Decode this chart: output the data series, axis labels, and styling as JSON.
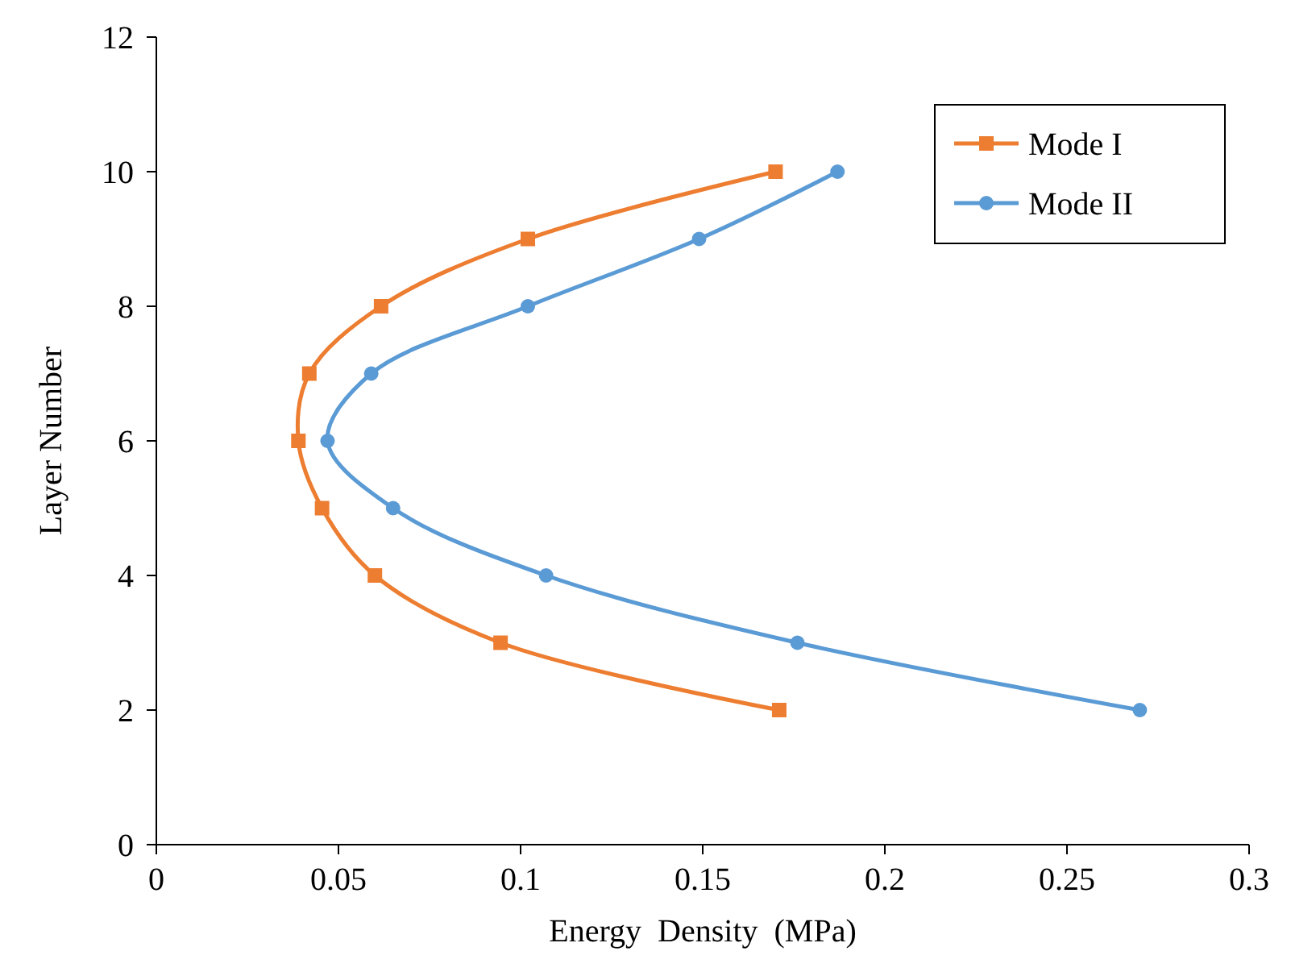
{
  "chart_data": {
    "type": "line",
    "xlabel": "Energy  Density  (MPa)",
    "ylabel": "Layer Number",
    "xlim": [
      0,
      0.3
    ],
    "xticks": [
      0,
      0.05,
      0.1,
      0.15,
      0.2,
      0.25,
      0.3
    ],
    "ylim": [
      0,
      12
    ],
    "yticks": [
      0,
      2,
      4,
      6,
      8,
      10,
      12
    ],
    "grid": false,
    "legend": "top right",
    "series": [
      {
        "name": "Mode I",
        "color": "#ed7d31",
        "marker": "square",
        "x": [
          0.171,
          0.0945,
          0.06,
          0.0455,
          0.039,
          0.042,
          0.0617,
          0.102,
          0.17
        ],
        "values": [
          2,
          3,
          4,
          5,
          6,
          7,
          8,
          9,
          10
        ]
      },
      {
        "name": "Mode II",
        "color": "#5b9bd5",
        "marker": "circle",
        "x": [
          0.27,
          0.176,
          0.107,
          0.065,
          0.047,
          0.059,
          0.102,
          0.149,
          0.187
        ],
        "values": [
          2,
          3,
          4,
          5,
          6,
          7,
          8,
          9,
          10
        ]
      }
    ]
  }
}
